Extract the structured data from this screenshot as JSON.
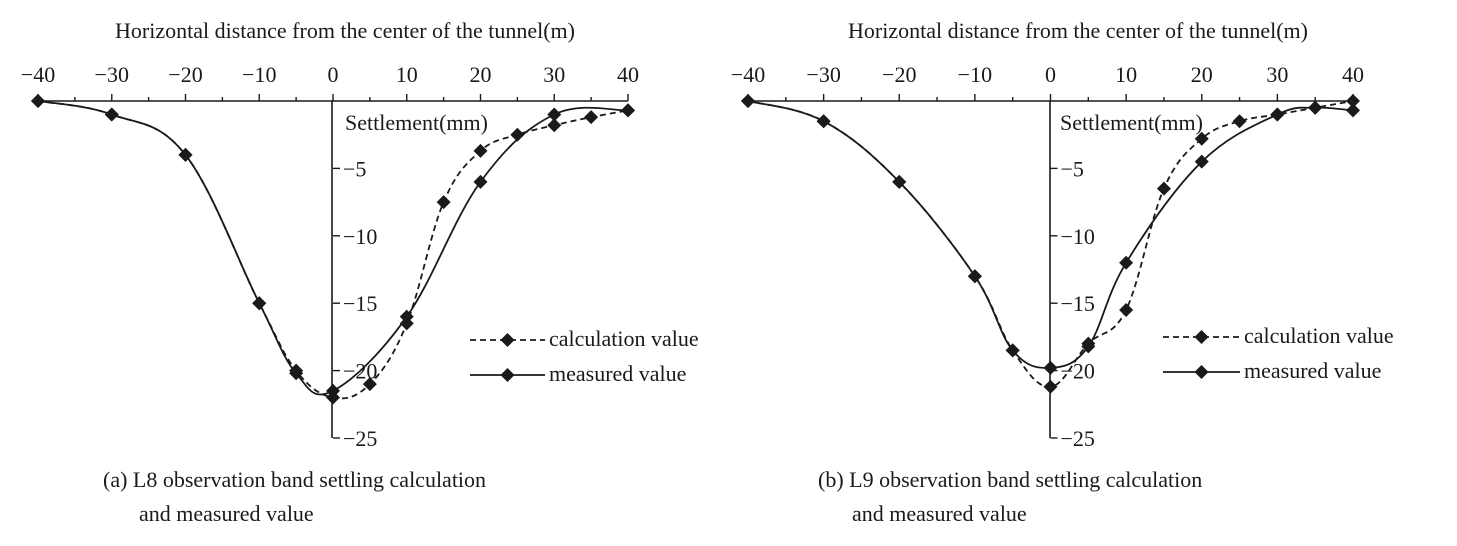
{
  "chart_data": [
    {
      "type": "line",
      "title": "Horizontal distance from the center of the tunnel(m)",
      "ylabel": "Settlement(mm)",
      "caption_line1": "(a) L8 observation band settling calculation",
      "caption_line2": "and measured value",
      "xlim": [
        -40,
        40
      ],
      "ylim": [
        -25,
        0
      ],
      "x_ticks": [
        "−40",
        "−30",
        "−20",
        "−10",
        "0",
        "10",
        "20",
        "30",
        "40"
      ],
      "y_ticks": [
        "−5",
        "−10",
        "−15",
        "−20",
        "−25"
      ],
      "legend": {
        "position": "right",
        "calc_label": "calculation value",
        "meas_label": "measured value"
      },
      "series": [
        {
          "name": "calculation value",
          "style": "dashed",
          "x": [
            -40,
            -30,
            -20,
            -10,
            -5,
            0,
            5,
            10,
            15,
            20,
            25,
            30,
            35,
            40
          ],
          "y": [
            0,
            -1,
            -4,
            -15,
            -20,
            -22,
            -21,
            -16.5,
            -7.5,
            -3.7,
            -2.5,
            -1.8,
            -1.2,
            -0.7
          ]
        },
        {
          "name": "measured value",
          "style": "solid",
          "x": [
            -40,
            -30,
            -20,
            -10,
            -5,
            0,
            10,
            20,
            30,
            40
          ],
          "y": [
            0,
            -1,
            -4,
            -15,
            -20.2,
            -21.5,
            -16,
            -6,
            -1,
            -0.7
          ]
        }
      ]
    },
    {
      "type": "line",
      "title": "Horizontal distance from the center of the tunnel(m)",
      "ylabel": "Settlement(mm)",
      "caption_line1": "(b) L9 observation band settling calculation",
      "caption_line2": "and measured value",
      "xlim": [
        -40,
        40
      ],
      "ylim": [
        -25,
        0
      ],
      "x_ticks": [
        "−40",
        "−30",
        "−20",
        "−10",
        "0",
        "10",
        "20",
        "30",
        "40"
      ],
      "y_ticks": [
        "−5",
        "−10",
        "−15",
        "−20",
        "−25"
      ],
      "legend": {
        "position": "right",
        "calc_label": "calculation value",
        "meas_label": "measured value"
      },
      "series": [
        {
          "name": "calculation value",
          "style": "dashed",
          "x": [
            -40,
            -30,
            -20,
            -10,
            -5,
            0,
            5,
            10,
            15,
            20,
            25,
            30,
            35,
            40
          ],
          "y": [
            0,
            -1.5,
            -6,
            -13,
            -18.5,
            -21.2,
            -18,
            -15.5,
            -6.5,
            -2.8,
            -1.5,
            -1,
            -0.5,
            0
          ]
        },
        {
          "name": "measured value",
          "style": "solid",
          "x": [
            -40,
            -30,
            -20,
            -10,
            -5,
            0,
            5,
            10,
            20,
            30,
            35,
            40
          ],
          "y": [
            0,
            -1.5,
            -6,
            -13,
            -18.5,
            -19.8,
            -18.2,
            -12,
            -4.5,
            -1,
            -0.5,
            -0.7
          ]
        }
      ]
    }
  ]
}
